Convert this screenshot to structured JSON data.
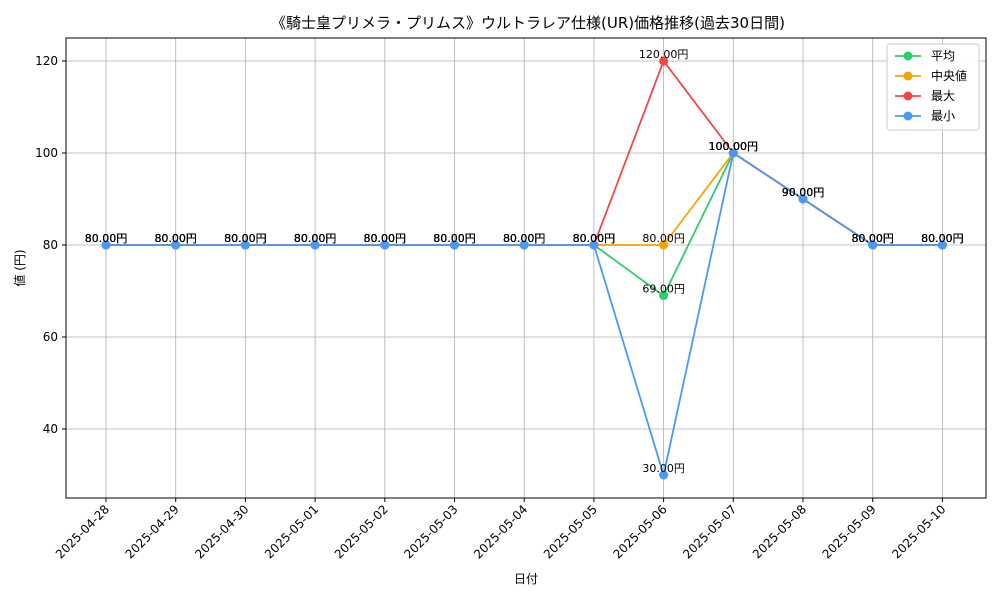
{
  "chart_data": {
    "type": "line",
    "title": "《騎士皇プリメラ・プリムス》ウルトラレア仕様(UR)価格推移(過去30日間)",
    "xlabel": "日付",
    "ylabel": "値 (円)",
    "categories": [
      "2025-04-28",
      "2025-04-29",
      "2025-04-30",
      "2025-05-01",
      "2025-05-02",
      "2025-05-03",
      "2025-05-04",
      "2025-05-05",
      "2025-05-06",
      "2025-05-07",
      "2025-05-08",
      "2025-05-09",
      "2025-05-10"
    ],
    "ylim": [
      25,
      125
    ],
    "yticks": [
      40,
      60,
      80,
      100,
      120
    ],
    "grid": true,
    "legend_position": "top-right",
    "series": [
      {
        "name": "平均",
        "color": "#2ecc71",
        "values": [
          80,
          80,
          80,
          80,
          80,
          80,
          80,
          80,
          69,
          100,
          90,
          80,
          80
        ]
      },
      {
        "name": "中央値",
        "color": "#f5a300",
        "values": [
          80,
          80,
          80,
          80,
          80,
          80,
          80,
          80,
          80,
          100,
          90,
          80,
          80
        ]
      },
      {
        "name": "最大",
        "color": "#f04848",
        "values": [
          80,
          80,
          80,
          80,
          80,
          80,
          80,
          80,
          120,
          100,
          90,
          80,
          80
        ]
      },
      {
        "name": "最小",
        "color": "#4a9af5",
        "values": [
          80,
          80,
          80,
          80,
          80,
          80,
          80,
          80,
          30,
          100,
          90,
          80,
          80
        ]
      }
    ],
    "data_label_suffix": "円"
  }
}
